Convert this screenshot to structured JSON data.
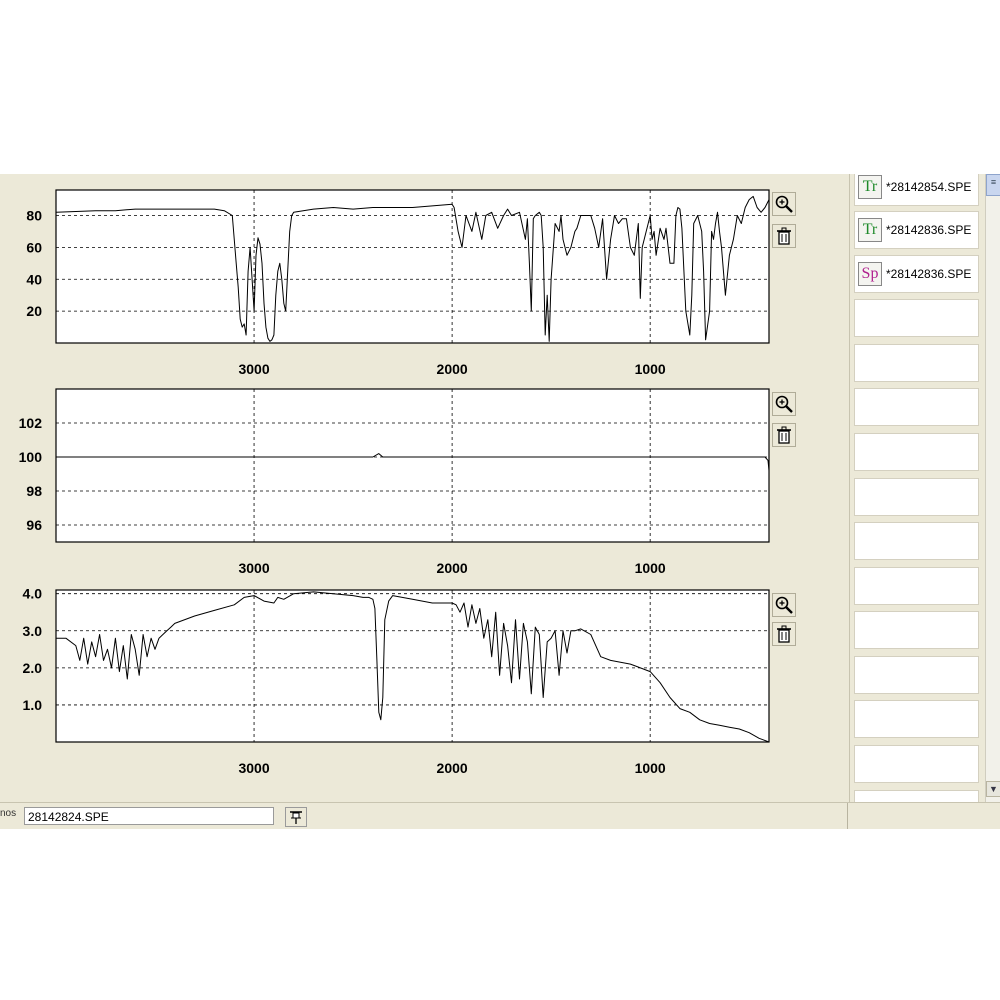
{
  "chart_data": [
    {
      "type": "line",
      "xlim": [
        4000,
        400
      ],
      "ylim": [
        0,
        96
      ],
      "xticks": [
        3000,
        2000,
        1000
      ],
      "yticks": [
        20,
        40,
        60,
        80
      ],
      "yticklabels": [
        "20",
        "40",
        "60",
        "80"
      ],
      "grid": true,
      "series": [
        {
          "x": [
            3999,
            3800,
            3700,
            3600,
            3400,
            3200,
            3150,
            3110,
            3090,
            3080,
            3070,
            3060,
            3050,
            3040,
            3030,
            3020,
            3010,
            3000,
            2990,
            2980,
            2970,
            2960,
            2950,
            2940,
            2930,
            2920,
            2910,
            2900,
            2890,
            2880,
            2870,
            2860,
            2850,
            2840,
            2830,
            2820,
            2810,
            2800,
            2700,
            2600,
            2500,
            2400,
            2300,
            2200,
            2100,
            2000,
            1990,
            1970,
            1950,
            1930,
            1900,
            1880,
            1850,
            1830,
            1800,
            1770,
            1740,
            1720,
            1700,
            1660,
            1630,
            1620,
            1610,
            1600,
            1590,
            1580,
            1560,
            1550,
            1540,
            1530,
            1520,
            1510,
            1500,
            1480,
            1460,
            1450,
            1440,
            1420,
            1400,
            1380,
            1370,
            1350,
            1300,
            1280,
            1260,
            1240,
            1220,
            1200,
            1180,
            1160,
            1140,
            1120,
            1100,
            1080,
            1060,
            1050,
            1040,
            1030,
            1020,
            1000,
            990,
            980,
            970,
            950,
            930,
            920,
            900,
            880,
            870,
            860,
            850,
            840,
            820,
            800,
            790,
            780,
            760,
            740,
            730,
            720,
            700,
            690,
            680,
            670,
            660,
            650,
            640,
            620,
            600,
            580,
            560,
            540,
            520,
            500,
            480,
            460,
            440,
            420,
            400
          ],
          "y": [
            82,
            83,
            83,
            84,
            84,
            84,
            83,
            80,
            50,
            35,
            15,
            10,
            12,
            5,
            45,
            60,
            40,
            20,
            55,
            66,
            62,
            50,
            25,
            10,
            3,
            1,
            2,
            5,
            30,
            45,
            50,
            40,
            25,
            20,
            45,
            70,
            80,
            82,
            84,
            85,
            84,
            85,
            85,
            85,
            86,
            87,
            85,
            70,
            60,
            80,
            70,
            82,
            65,
            80,
            82,
            72,
            80,
            84,
            80,
            82,
            65,
            78,
            50,
            20,
            78,
            80,
            82,
            80,
            60,
            5,
            30,
            1,
            40,
            75,
            70,
            80,
            65,
            55,
            60,
            70,
            72,
            80,
            80,
            72,
            60,
            78,
            40,
            65,
            80,
            75,
            78,
            78,
            60,
            55,
            75,
            28,
            60,
            65,
            70,
            80,
            65,
            70,
            55,
            72,
            65,
            72,
            50,
            50,
            80,
            85,
            84,
            72,
            20,
            5,
            30,
            75,
            80,
            70,
            45,
            2,
            20,
            70,
            65,
            75,
            82,
            70,
            60,
            30,
            55,
            65,
            80,
            75,
            85,
            90,
            92,
            85,
            82,
            85,
            90
          ]
        }
      ]
    },
    {
      "type": "line",
      "xlim": [
        4000,
        400
      ],
      "ylim": [
        95,
        104
      ],
      "xticks": [
        3000,
        2000,
        1000
      ],
      "yticks": [
        96,
        98,
        100,
        102
      ],
      "yticklabels": [
        "96",
        "98",
        "100",
        "102"
      ],
      "grid": true,
      "series": [
        {
          "x": [
            3999,
            3500,
            3000,
            2500,
            2400,
            2370,
            2350,
            2300,
            2000,
            1500,
            1000,
            500,
            420,
            405,
            400
          ],
          "y": [
            100,
            100,
            100,
            100,
            100,
            100.2,
            100,
            100,
            100,
            100,
            100,
            100,
            100,
            99.8,
            99.2
          ]
        }
      ]
    },
    {
      "type": "line",
      "xlim": [
        4000,
        400
      ],
      "ylim": [
        0,
        4.1
      ],
      "xticks": [
        3000,
        2000,
        1000
      ],
      "yticks": [
        1,
        2,
        3,
        4
      ],
      "yticklabels": [
        "1.0",
        "2.0",
        "3.0",
        "4.0"
      ],
      "grid": true,
      "series": [
        {
          "x": [
            3999,
            3950,
            3900,
            3880,
            3860,
            3840,
            3820,
            3800,
            3780,
            3760,
            3740,
            3720,
            3700,
            3680,
            3660,
            3640,
            3620,
            3600,
            3580,
            3560,
            3540,
            3520,
            3500,
            3480,
            3460,
            3440,
            3420,
            3400,
            3300,
            3200,
            3100,
            3050,
            3000,
            2950,
            2900,
            2880,
            2850,
            2800,
            2700,
            2600,
            2500,
            2450,
            2420,
            2400,
            2390,
            2380,
            2370,
            2360,
            2350,
            2340,
            2320,
            2300,
            2200,
            2100,
            2000,
            1980,
            1960,
            1940,
            1920,
            1900,
            1880,
            1860,
            1840,
            1820,
            1800,
            1780,
            1760,
            1740,
            1720,
            1700,
            1680,
            1660,
            1640,
            1620,
            1600,
            1580,
            1560,
            1540,
            1520,
            1500,
            1480,
            1460,
            1440,
            1420,
            1400,
            1380,
            1350,
            1300,
            1250,
            1200,
            1100,
            1000,
            950,
            900,
            850,
            800,
            750,
            700,
            650,
            600,
            550,
            500,
            450,
            400
          ],
          "y": [
            2.8,
            2.8,
            2.6,
            2.2,
            2.8,
            2.1,
            2.7,
            2.3,
            2.9,
            2.2,
            2.5,
            2.0,
            2.8,
            1.9,
            2.6,
            1.7,
            2.9,
            2.5,
            1.8,
            2.9,
            2.3,
            2.8,
            2.5,
            2.8,
            2.9,
            3.0,
            3.1,
            3.2,
            3.4,
            3.55,
            3.7,
            3.9,
            3.95,
            3.8,
            3.75,
            3.9,
            3.85,
            4.0,
            4.05,
            4.0,
            3.95,
            3.9,
            3.9,
            3.85,
            3.6,
            2.2,
            0.8,
            0.6,
            1.2,
            3.3,
            3.8,
            3.95,
            3.85,
            3.75,
            3.75,
            3.7,
            3.5,
            3.75,
            3.1,
            3.7,
            3.2,
            3.6,
            2.8,
            3.3,
            2.3,
            3.5,
            1.8,
            3.2,
            2.6,
            1.6,
            3.3,
            1.7,
            3.2,
            2.7,
            1.3,
            3.1,
            2.9,
            1.2,
            2.7,
            2.8,
            3.0,
            1.8,
            3.0,
            2.4,
            3.0,
            3.0,
            3.05,
            2.9,
            2.3,
            2.2,
            2.1,
            1.9,
            1.6,
            1.2,
            0.9,
            0.8,
            0.6,
            0.5,
            0.45,
            0.4,
            0.35,
            0.25,
            0.1,
            0.0
          ]
        }
      ]
    }
  ],
  "sidebar": {
    "files": [
      {
        "tag": "Tr",
        "name": "*28142854.SPE",
        "tag_color": "#1e8a2a"
      },
      {
        "tag": "Tr",
        "name": "*28142836.SPE",
        "tag_color": "#1e8a2a"
      },
      {
        "tag": "Sp",
        "name": "*28142836.SPE",
        "tag_color": "#b0208f"
      }
    ]
  },
  "status_bar": {
    "label": "nos",
    "filename": "28142824.SPE"
  },
  "icons": {
    "zoom": "zoom-in-icon",
    "delete": "trash-icon",
    "pin": "pin-icon",
    "scroll_up": "scroll-up-icon",
    "scroll_down": "scroll-down-icon"
  }
}
